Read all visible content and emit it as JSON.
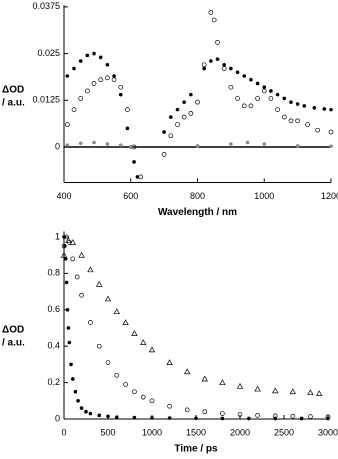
{
  "chart_data": [
    {
      "type": "scatter",
      "xlabel": "Wavelength / nm",
      "ylabel": [
        "ΔOD",
        "/ a.u."
      ],
      "xlim": [
        400,
        1200
      ],
      "ylim": [
        -0.0095,
        0.038
      ],
      "xticks": [
        400,
        600,
        800,
        1000,
        1200
      ],
      "yticks": [
        0,
        0.0125,
        0.025,
        0.0375
      ],
      "zero_line": true,
      "series": [
        {
          "color": "#000000",
          "marker": "filled-circle",
          "x": [
            410,
            430,
            450,
            470,
            490,
            510,
            530,
            550,
            570,
            590,
            600,
            610,
            620,
            700,
            720,
            740,
            760,
            780,
            820,
            840,
            860,
            880,
            900,
            920,
            940,
            960,
            980,
            1000,
            1020,
            1040,
            1060,
            1080,
            1100,
            1120,
            1150,
            1180,
            1200
          ],
          "values": [
            0.019,
            0.021,
            0.023,
            0.0245,
            0.025,
            0.024,
            0.022,
            0.019,
            0.014,
            0.005,
            0.0,
            -0.004,
            -0.008,
            0.004,
            0.008,
            0.01,
            0.012,
            0.014,
            0.021,
            0.023,
            0.0235,
            0.022,
            0.021,
            0.02,
            0.019,
            0.018,
            0.017,
            0.016,
            0.015,
            0.014,
            0.013,
            0.012,
            0.0115,
            0.011,
            0.0105,
            0.0102,
            0.01
          ]
        },
        {
          "color": "#000000",
          "marker": "open-circle",
          "x": [
            410,
            430,
            450,
            470,
            490,
            510,
            530,
            550,
            570,
            590,
            610,
            630,
            700,
            720,
            740,
            760,
            780,
            800,
            820,
            840,
            850,
            860,
            880,
            900,
            920,
            940,
            960,
            980,
            1000,
            1020,
            1040,
            1060,
            1080,
            1100,
            1130,
            1160,
            1200
          ],
          "values": [
            0.006,
            0.01,
            0.013,
            0.015,
            0.017,
            0.018,
            0.0185,
            0.018,
            0.016,
            0.01,
            0.0,
            -0.008,
            -0.002,
            0.003,
            0.006,
            0.008,
            0.009,
            0.012,
            0.022,
            0.036,
            0.034,
            0.028,
            0.021,
            0.016,
            0.013,
            0.011,
            0.011,
            0.013,
            0.015,
            0.013,
            0.01,
            0.008,
            0.007,
            0.007,
            0.006,
            0.0045,
            0.004
          ]
        },
        {
          "color": "#888888",
          "marker": "filled-circle",
          "x": [
            410,
            450,
            490,
            530,
            570,
            600,
            800,
            900,
            950,
            1000,
            1100,
            1200
          ],
          "values": [
            0.0005,
            0.001,
            0.0012,
            0.0008,
            0.0005,
            0.0,
            0.0003,
            0.0008,
            0.0012,
            0.0008,
            0.0003,
            0.0002
          ]
        }
      ]
    },
    {
      "type": "scatter",
      "xlabel": "Time / ps",
      "ylabel": [
        "ΔOD",
        "/ a.u."
      ],
      "xlim": [
        0,
        3000
      ],
      "ylim": [
        0,
        1.03
      ],
      "xticks": [
        0,
        500,
        1000,
        1500,
        2000,
        2500,
        3000
      ],
      "yticks": [
        0,
        0.2,
        0.4,
        0.6,
        0.8,
        1
      ],
      "zero_line": false,
      "series": [
        {
          "color": "#000000",
          "marker": "filled-circle",
          "x": [
            0,
            10,
            20,
            30,
            40,
            50,
            60,
            80,
            100,
            130,
            160,
            200,
            250,
            300,
            400,
            500,
            600,
            800,
            1000,
            1200,
            1500,
            1800,
            2100,
            2400,
            2700,
            3000
          ],
          "values": [
            1,
            0.95,
            0.88,
            0.75,
            0.6,
            0.5,
            0.42,
            0.3,
            0.22,
            0.15,
            0.1,
            0.06,
            0.04,
            0.03,
            0.02,
            0.015,
            0.01,
            0.008,
            0.006,
            0.005,
            0.004,
            0.003,
            0.003,
            0.003,
            0.003,
            0.003
          ]
        },
        {
          "color": "#000000",
          "marker": "open-circle",
          "x": [
            0,
            30,
            60,
            100,
            150,
            200,
            300,
            400,
            500,
            600,
            700,
            800,
            900,
            1000,
            1200,
            1400,
            1600,
            1800,
            2000,
            2200,
            2400,
            2600,
            2800,
            3000
          ],
          "values": [
            0.95,
            1,
            0.97,
            0.88,
            0.78,
            0.68,
            0.53,
            0.4,
            0.31,
            0.24,
            0.19,
            0.15,
            0.12,
            0.1,
            0.07,
            0.05,
            0.04,
            0.03,
            0.025,
            0.02,
            0.017,
            0.015,
            0.013,
            0.012
          ]
        },
        {
          "color": "#000000",
          "marker": "open-triangle",
          "x": [
            0,
            50,
            100,
            200,
            300,
            400,
            500,
            600,
            700,
            800,
            900,
            1000,
            1200,
            1400,
            1600,
            1800,
            2000,
            2200,
            2400,
            2600,
            2800,
            2900
          ],
          "values": [
            0.9,
            0.98,
            0.97,
            0.9,
            0.82,
            0.74,
            0.66,
            0.59,
            0.53,
            0.47,
            0.42,
            0.38,
            0.31,
            0.26,
            0.22,
            0.2,
            0.18,
            0.165,
            0.155,
            0.15,
            0.145,
            0.14
          ]
        }
      ]
    }
  ]
}
